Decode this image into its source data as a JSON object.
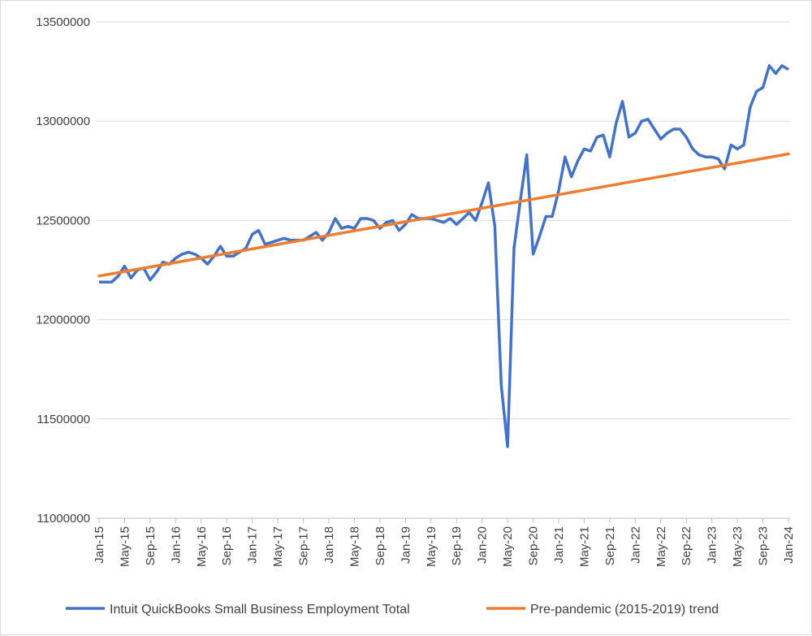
{
  "chart_data": {
    "type": "line",
    "title": "",
    "xlabel": "",
    "ylabel": "",
    "ylim": [
      11000000,
      13500000
    ],
    "y_ticks": [
      11000000,
      11500000,
      12000000,
      12500000,
      13000000,
      13500000
    ],
    "y_tick_labels": [
      "11000000",
      "11500000",
      "12000000",
      "12500000",
      "13000000",
      "13500000"
    ],
    "x_tick_labels": [
      "Jan-15",
      "May-15",
      "Sep-15",
      "Jan-16",
      "May-16",
      "Sep-16",
      "Jan-17",
      "May-17",
      "Sep-17",
      "Jan-18",
      "May-18",
      "Sep-18",
      "Jan-19",
      "May-19",
      "Sep-19",
      "Jan-20",
      "May-20",
      "Sep-20",
      "Jan-21",
      "May-21",
      "Sep-21",
      "Jan-22",
      "May-22",
      "Sep-22",
      "Jan-23",
      "May-23",
      "Sep-23",
      "Jan-24"
    ],
    "x_tick_every_months": 4,
    "grid": "horizontal",
    "legend_position": "bottom",
    "series": [
      {
        "name": "Intuit QuickBooks Small Business Employment Total",
        "color": "#4472C4",
        "values": [
          12190000,
          12190000,
          12190000,
          12220000,
          12270000,
          12210000,
          12250000,
          12260000,
          12200000,
          12240000,
          12290000,
          12280000,
          12310000,
          12330000,
          12340000,
          12330000,
          12310000,
          12280000,
          12320000,
          12370000,
          12320000,
          12320000,
          12340000,
          12360000,
          12430000,
          12450000,
          12380000,
          12390000,
          12400000,
          12410000,
          12400000,
          12400000,
          12400000,
          12420000,
          12440000,
          12400000,
          12440000,
          12510000,
          12460000,
          12470000,
          12460000,
          12510000,
          12510000,
          12500000,
          12460000,
          12490000,
          12500000,
          12450000,
          12480000,
          12530000,
          12510000,
          12510000,
          12510000,
          12500000,
          12490000,
          12510000,
          12480000,
          12510000,
          12540000,
          12500000,
          12590000,
          12690000,
          12470000,
          11670000,
          11360000,
          12360000,
          12600000,
          12830000,
          12330000,
          12420000,
          12520000,
          12520000,
          12650000,
          12820000,
          12720000,
          12800000,
          12860000,
          12850000,
          12920000,
          12930000,
          12820000,
          12990000,
          13100000,
          12920000,
          12940000,
          13000000,
          13010000,
          12960000,
          12910000,
          12940000,
          12960000,
          12960000,
          12920000,
          12860000,
          12830000,
          12820000,
          12820000,
          12810000,
          12760000,
          12880000,
          12860000,
          12880000,
          13070000,
          13150000,
          13170000,
          13280000,
          13240000,
          13280000,
          13260000
        ]
      },
      {
        "name": "Pre-pandemic (2015-2019) trend",
        "color": "#ED7D31",
        "start": 12220000,
        "end": 12835000
      }
    ]
  }
}
